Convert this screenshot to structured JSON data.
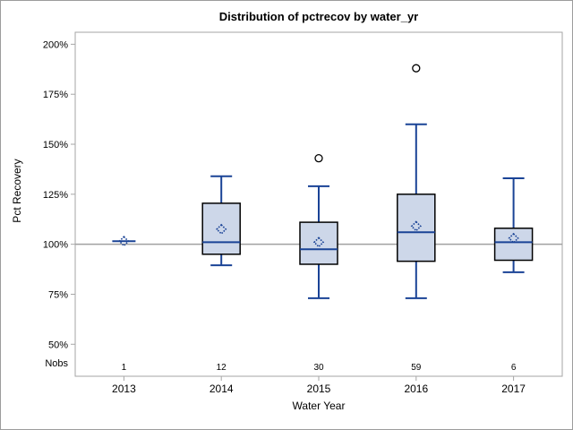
{
  "window": {
    "background": "#ffffff",
    "border_color": "#9c9c9c"
  },
  "chart_data": {
    "type": "boxplot",
    "title": "Distribution of pctrecov by water_yr",
    "xlabel": "Water Year",
    "ylabel": "Pct Recovery",
    "nobs_label": "Nobs",
    "categories": [
      "2013",
      "2014",
      "2015",
      "2016",
      "2017"
    ],
    "nobs": [
      "1",
      "12",
      "30",
      "59",
      "6"
    ],
    "y_tick_values": [
      200,
      175,
      150,
      125,
      100,
      75,
      50
    ],
    "y_tick_labels": [
      "200%",
      "175%",
      "150%",
      "125%",
      "100%",
      "75%",
      "50%"
    ],
    "ylim": [
      34,
      206
    ],
    "reference_line": 100,
    "grid": "off",
    "legend": "none",
    "boxes": [
      {
        "category": "2013",
        "n": 1,
        "whisker_low": 101.5,
        "q1": 101.5,
        "median": 101.5,
        "q3": 101.5,
        "whisker_high": 101.5,
        "mean": 101.5,
        "outliers": []
      },
      {
        "category": "2014",
        "n": 12,
        "whisker_low": 89.5,
        "q1": 95,
        "median": 101,
        "q3": 120.5,
        "whisker_high": 134,
        "mean": 107.5,
        "outliers": []
      },
      {
        "category": "2015",
        "n": 30,
        "whisker_low": 73,
        "q1": 90,
        "median": 97.5,
        "q3": 111,
        "whisker_high": 129,
        "mean": 101,
        "outliers": [
          143
        ]
      },
      {
        "category": "2016",
        "n": 59,
        "whisker_low": 73,
        "q1": 91.5,
        "median": 106,
        "q3": 125,
        "whisker_high": 160,
        "mean": 109,
        "outliers": [
          188
        ]
      },
      {
        "category": "2017",
        "n": 6,
        "whisker_low": 86,
        "q1": 92,
        "median": 101,
        "q3": 108,
        "whisker_high": 133,
        "mean": 103,
        "outliers": []
      }
    ],
    "colors": {
      "line": "#1a4396",
      "box_fill": "#cdd7e9",
      "box_border": "#000000",
      "outlier_stroke": "#000000",
      "reference_line": "#a0a0a0",
      "frame": "#a6a6a6",
      "text": "#000000"
    }
  }
}
